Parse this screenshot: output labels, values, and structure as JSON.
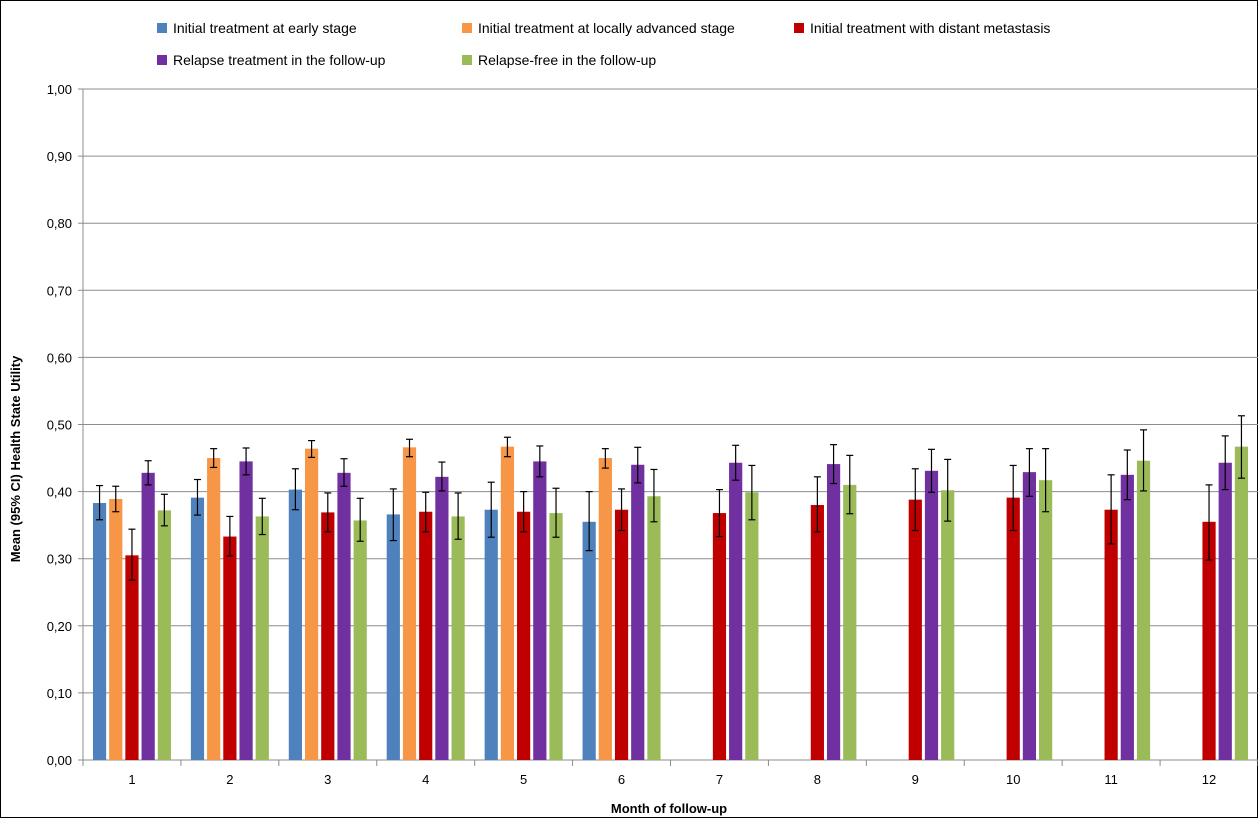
{
  "chart_data": {
    "type": "bar",
    "title": "",
    "xlabel": "Month of follow-up",
    "ylabel": "Mean (95% CI) Health State Utility",
    "ylim": [
      0,
      1.0
    ],
    "yticks": [
      "0,00",
      "0,10",
      "0,20",
      "0,30",
      "0,40",
      "0,50",
      "0,60",
      "0,70",
      "0,80",
      "0,90",
      "1,00"
    ],
    "categories": [
      "1",
      "2",
      "3",
      "4",
      "5",
      "6",
      "7",
      "8",
      "9",
      "10",
      "11",
      "12"
    ],
    "grid": true,
    "legend_position": "top",
    "error_bars": "95% CI",
    "series": [
      {
        "name": "Initial treatment at early stage",
        "color": "#4F81BD",
        "values": [
          0.383,
          0.391,
          0.403,
          0.366,
          0.373,
          0.355,
          null,
          null,
          null,
          null,
          null,
          null
        ],
        "lower": [
          0.358,
          0.365,
          0.373,
          0.327,
          0.332,
          0.312,
          null,
          null,
          null,
          null,
          null,
          null
        ],
        "upper": [
          0.409,
          0.418,
          0.434,
          0.404,
          0.414,
          0.4,
          null,
          null,
          null,
          null,
          null,
          null
        ]
      },
      {
        "name": "Initial treatment at locally advanced stage",
        "color": "#F79646",
        "values": [
          0.389,
          0.45,
          0.464,
          0.466,
          0.467,
          0.45,
          null,
          null,
          null,
          null,
          null,
          null
        ],
        "lower": [
          0.37,
          0.436,
          0.451,
          0.452,
          0.452,
          0.435,
          null,
          null,
          null,
          null,
          null,
          null
        ],
        "upper": [
          0.408,
          0.464,
          0.476,
          0.478,
          0.481,
          0.464,
          null,
          null,
          null,
          null,
          null,
          null
        ]
      },
      {
        "name": "Initial treatment with distant metastasis",
        "color": "#C00000",
        "values": [
          0.305,
          0.333,
          0.369,
          0.37,
          0.37,
          0.373,
          0.368,
          0.38,
          0.388,
          0.391,
          0.373,
          0.355
        ],
        "lower": [
          0.268,
          0.304,
          0.34,
          0.34,
          0.34,
          0.342,
          0.333,
          0.34,
          0.342,
          0.342,
          0.322,
          0.298
        ],
        "upper": [
          0.344,
          0.363,
          0.398,
          0.399,
          0.4,
          0.404,
          0.403,
          0.422,
          0.434,
          0.439,
          0.425,
          0.41
        ]
      },
      {
        "name": "Relapse treatment in the follow-up",
        "color": "#7030A0",
        "values": [
          0.428,
          0.445,
          0.428,
          0.422,
          0.445,
          0.44,
          0.443,
          0.441,
          0.431,
          0.429,
          0.425,
          0.443
        ],
        "lower": [
          0.41,
          0.425,
          0.408,
          0.401,
          0.422,
          0.413,
          0.417,
          0.412,
          0.399,
          0.393,
          0.388,
          0.403
        ],
        "upper": [
          0.446,
          0.465,
          0.449,
          0.444,
          0.468,
          0.466,
          0.469,
          0.47,
          0.463,
          0.464,
          0.462,
          0.483
        ]
      },
      {
        "name": "Relapse-free in the follow-up",
        "color": "#9BBB59",
        "values": [
          0.372,
          0.363,
          0.357,
          0.363,
          0.368,
          0.393,
          0.399,
          0.41,
          0.402,
          0.417,
          0.446,
          0.467
        ],
        "lower": [
          0.349,
          0.336,
          0.326,
          0.329,
          0.332,
          0.355,
          0.358,
          0.367,
          0.356,
          0.37,
          0.401,
          0.42
        ],
        "upper": [
          0.396,
          0.39,
          0.39,
          0.398,
          0.405,
          0.433,
          0.439,
          0.454,
          0.448,
          0.464,
          0.492,
          0.513
        ]
      }
    ]
  }
}
